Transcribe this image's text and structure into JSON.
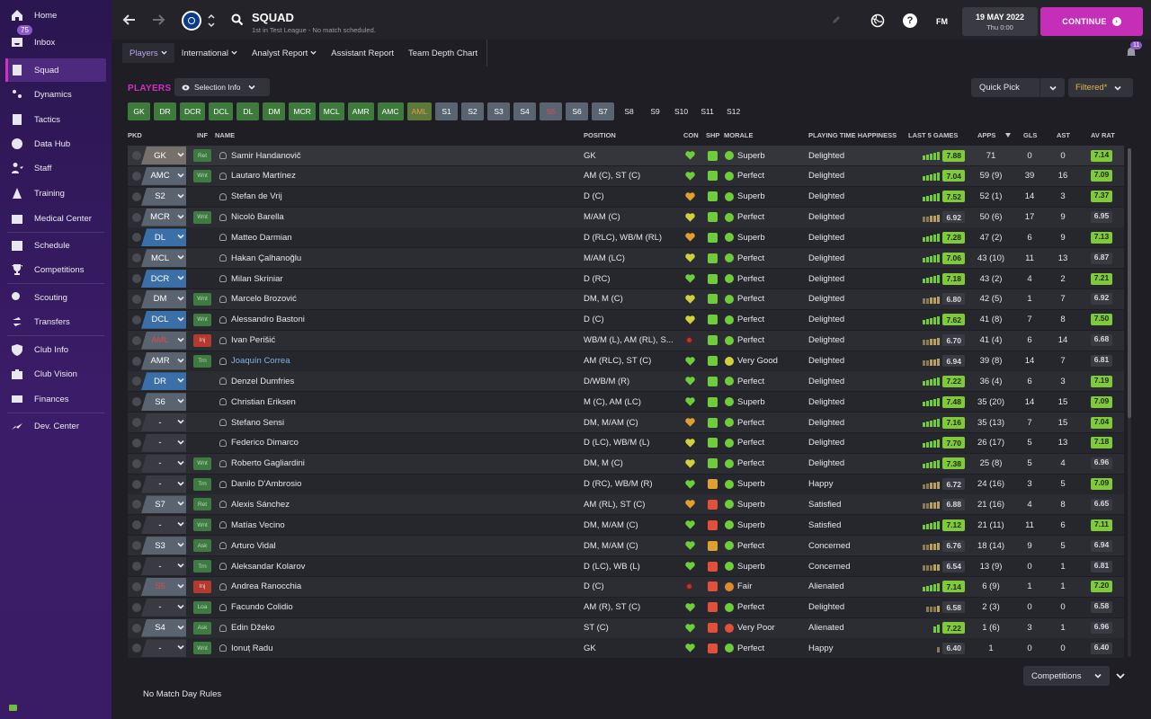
{
  "sidebar": {
    "items": [
      {
        "label": "Home",
        "icon": "home-icon"
      },
      {
        "label": "Inbox",
        "icon": "inbox-icon",
        "badge": "75"
      },
      {
        "label": "Squad",
        "icon": "squad-icon",
        "active": true
      },
      {
        "label": "Dynamics",
        "icon": "dynamics-icon"
      },
      {
        "label": "Tactics",
        "icon": "tactics-icon"
      },
      {
        "label": "Data Hub",
        "icon": "data-hub-icon"
      },
      {
        "label": "Staff",
        "icon": "staff-icon"
      },
      {
        "label": "Training",
        "icon": "training-icon"
      },
      {
        "label": "Medical Center",
        "icon": "medical-icon"
      },
      {
        "label": "Schedule",
        "icon": "schedule-icon"
      },
      {
        "label": "Competitions",
        "icon": "trophy-icon"
      },
      {
        "label": "Scouting",
        "icon": "scouting-icon"
      },
      {
        "label": "Transfers",
        "icon": "transfers-icon"
      },
      {
        "label": "Club Info",
        "icon": "shield-icon"
      },
      {
        "label": "Club Vision",
        "icon": "briefcase-icon"
      },
      {
        "label": "Finances",
        "icon": "finances-icon"
      },
      {
        "label": "Dev. Center",
        "icon": "dev-center-icon"
      }
    ]
  },
  "header": {
    "title": "SQUAD",
    "subtitle": "1st in Test League - No match scheduled.",
    "fm_logo": "FM",
    "date": "19 MAY 2022",
    "time": "Thu 0:00",
    "continue_label": "CONTINUE",
    "notif_count": "11"
  },
  "subnav": [
    "Players",
    "International",
    "Analyst Report",
    "Assistant Report",
    "Team Depth Chart"
  ],
  "toolbar": {
    "players_label": "PLAYERS",
    "selection_info": "Selection Info",
    "quick_pick": "Quick Pick",
    "filtered": "Filtered*"
  },
  "position_chips": [
    {
      "label": "GK",
      "style": "green"
    },
    {
      "label": "DR",
      "style": "green"
    },
    {
      "label": "DCR",
      "style": "green"
    },
    {
      "label": "DCL",
      "style": "green"
    },
    {
      "label": "DL",
      "style": "green"
    },
    {
      "label": "DM",
      "style": "green"
    },
    {
      "label": "MCR",
      "style": "green"
    },
    {
      "label": "MCL",
      "style": "green"
    },
    {
      "label": "AMR",
      "style": "green"
    },
    {
      "label": "AMC",
      "style": "green"
    },
    {
      "label": "AML",
      "style": "amber"
    },
    {
      "label": "S1",
      "style": "grey"
    },
    {
      "label": "S2",
      "style": "grey"
    },
    {
      "label": "S3",
      "style": "grey"
    },
    {
      "label": "S4",
      "style": "grey"
    },
    {
      "label": "S5",
      "style": "red"
    },
    {
      "label": "S6",
      "style": "grey"
    },
    {
      "label": "S7",
      "style": "grey"
    },
    {
      "label": "S8",
      "style": "dark"
    },
    {
      "label": "S9",
      "style": "dark"
    },
    {
      "label": "S10",
      "style": "dark"
    },
    {
      "label": "S11",
      "style": "dark"
    },
    {
      "label": "S12",
      "style": "dark"
    }
  ],
  "columns": {
    "pkd": "PKD",
    "inf": "INF",
    "name": "NAME",
    "position": "POSITION",
    "con": "CON",
    "shp": "SHP",
    "morale": "MORALE",
    "pth": "PLAYING TIME HAPPINESS",
    "last5": "LAST 5 GAMES",
    "apps": "APPS",
    "gls": "GLS",
    "ast": "AST",
    "avrat": "AV RAT"
  },
  "players": [
    {
      "pkd": "GK",
      "pkd_style": "gk",
      "inf": "Ret",
      "name": "Samir Handanovič",
      "position": "GK",
      "con": "green",
      "shp": "green",
      "morale_icon": "green",
      "morale": "Superb",
      "pth": "Delighted",
      "form": [
        0.5,
        0.6,
        0.7,
        0.8,
        0.9
      ],
      "last5": "7.88",
      "last5_good": true,
      "apps": "71",
      "gls": "0",
      "ast": "0",
      "avrat": "7.14",
      "avrat_good": true
    },
    {
      "pkd": "AMC",
      "pkd_style": "grey",
      "inf": "Wnt",
      "name": "Lautaro Martínez",
      "position": "AM (C), ST (C)",
      "con": "green",
      "shp": "green",
      "morale_icon": "green",
      "morale": "Perfect",
      "pth": "Delighted",
      "form": [
        0.5,
        0.6,
        0.7,
        0.8,
        0.9
      ],
      "last5": "7.04",
      "last5_good": true,
      "apps": "59 (9)",
      "gls": "39",
      "ast": "16",
      "avrat": "7.09",
      "avrat_good": true
    },
    {
      "pkd": "S2",
      "pkd_style": "grey",
      "inf": "",
      "name": "Stefan de Vrij",
      "position": "D (C)",
      "con": "amber",
      "shp": "green",
      "morale_icon": "green",
      "morale": "Superb",
      "pth": "Delighted",
      "form": [
        0.5,
        0.6,
        0.7,
        0.8,
        0.9
      ],
      "last5": "7.52",
      "last5_good": true,
      "apps": "52 (1)",
      "gls": "14",
      "ast": "3",
      "avrat": "7.37",
      "avrat_good": true
    },
    {
      "pkd": "MCR",
      "pkd_style": "grey",
      "inf": "Wnt",
      "name": "Nicolò Barella",
      "position": "M/AM (C)",
      "con": "yellow",
      "shp": "green",
      "morale_icon": "green",
      "morale": "Perfect",
      "pth": "Delighted",
      "form": [
        0.6,
        0.6,
        0.7,
        0.7,
        0.8
      ],
      "last5": "6.92",
      "last5_good": false,
      "apps": "50 (6)",
      "gls": "17",
      "ast": "9",
      "avrat": "6.95",
      "avrat_good": false
    },
    {
      "pkd": "DL",
      "pkd_style": "blue",
      "inf": "",
      "name": "Matteo Darmian",
      "position": "D (RLC), WB/M (RL)",
      "con": "amber",
      "shp": "green",
      "morale_icon": "green",
      "morale": "Superb",
      "pth": "Delighted",
      "form": [
        0.5,
        0.6,
        0.7,
        0.8,
        0.9
      ],
      "last5": "7.28",
      "last5_good": true,
      "apps": "47 (2)",
      "gls": "6",
      "ast": "9",
      "avrat": "7.13",
      "avrat_good": true
    },
    {
      "pkd": "MCL",
      "pkd_style": "grey",
      "inf": "",
      "name": "Hakan Çalhanoğlu",
      "position": "M/AM (LC)",
      "con": "yellow",
      "shp": "green",
      "morale_icon": "green",
      "morale": "Perfect",
      "pth": "Delighted",
      "form": [
        0.5,
        0.6,
        0.7,
        0.8,
        0.9
      ],
      "last5": "7.06",
      "last5_good": true,
      "apps": "43 (10)",
      "gls": "11",
      "ast": "13",
      "avrat": "6.87",
      "avrat_good": false
    },
    {
      "pkd": "DCR",
      "pkd_style": "blue",
      "inf": "",
      "name": "Milan Skriniar",
      "position": "D (RC)",
      "con": "green",
      "shp": "green",
      "morale_icon": "green",
      "morale": "Perfect",
      "pth": "Delighted",
      "form": [
        0.5,
        0.6,
        0.7,
        0.8,
        0.9
      ],
      "last5": "7.18",
      "last5_good": true,
      "apps": "43 (2)",
      "gls": "4",
      "ast": "2",
      "avrat": "7.21",
      "avrat_good": true
    },
    {
      "pkd": "DM",
      "pkd_style": "grey",
      "inf": "Wnt",
      "name": "Marcelo Brozović",
      "position": "DM, M (C)",
      "con": "yellow",
      "shp": "green",
      "morale_icon": "green",
      "morale": "Perfect",
      "pth": "Delighted",
      "form": [
        0.6,
        0.6,
        0.7,
        0.7,
        0.8
      ],
      "last5": "6.80",
      "last5_good": false,
      "apps": "42 (5)",
      "gls": "1",
      "ast": "7",
      "avrat": "6.92",
      "avrat_good": false
    },
    {
      "pkd": "DCL",
      "pkd_style": "blue",
      "inf": "Wnt",
      "name": "Alessandro Bastoni",
      "position": "D (C)",
      "con": "yellow",
      "shp": "green",
      "morale_icon": "green",
      "morale": "Perfect",
      "pth": "Delighted",
      "form": [
        0.5,
        0.6,
        0.7,
        0.8,
        0.9
      ],
      "last5": "7.62",
      "last5_good": true,
      "apps": "41 (8)",
      "gls": "7",
      "ast": "8",
      "avrat": "7.50",
      "avrat_good": true
    },
    {
      "pkd": "AML",
      "pkd_style": "red",
      "inf": "Inj",
      "name": "Ivan Perišić",
      "position": "WB/M (L), AM (RL), S...",
      "con": "injured",
      "shp": "green",
      "morale_icon": "green",
      "morale": "Perfect",
      "pth": "Delighted",
      "form": [
        0.6,
        0.6,
        0.7,
        0.7,
        0.8
      ],
      "last5": "6.70",
      "last5_good": false,
      "apps": "41 (4)",
      "gls": "6",
      "ast": "14",
      "avrat": "6.68",
      "avrat_good": false
    },
    {
      "pkd": "AMR",
      "pkd_style": "grey",
      "inf": "Trn",
      "name": "Joaquín Correa",
      "name_link": true,
      "position": "AM (RLC), ST (C)",
      "con": "green",
      "shp": "green",
      "morale_icon": "yellow",
      "morale": "Very Good",
      "pth": "Delighted",
      "form": [
        0.6,
        0.6,
        0.7,
        0.7,
        0.8
      ],
      "last5": "6.94",
      "last5_good": false,
      "apps": "39 (8)",
      "gls": "14",
      "ast": "7",
      "avrat": "6.81",
      "avrat_good": false
    },
    {
      "pkd": "DR",
      "pkd_style": "blue",
      "inf": "",
      "name": "Denzel Dumfries",
      "position": "D/WB/M (R)",
      "con": "green",
      "shp": "green",
      "morale_icon": "green",
      "morale": "Perfect",
      "pth": "Delighted",
      "form": [
        0.5,
        0.6,
        0.7,
        0.8,
        0.9
      ],
      "last5": "7.22",
      "last5_good": true,
      "apps": "36 (4)",
      "gls": "6",
      "ast": "3",
      "avrat": "7.19",
      "avrat_good": true
    },
    {
      "pkd": "S6",
      "pkd_style": "grey",
      "inf": "",
      "name": "Christian Eriksen",
      "position": "M (C), AM (LC)",
      "con": "green",
      "shp": "green",
      "morale_icon": "green",
      "morale": "Superb",
      "pth": "Delighted",
      "form": [
        0.5,
        0.6,
        0.7,
        0.8,
        0.9
      ],
      "last5": "7.48",
      "last5_good": true,
      "apps": "35 (20)",
      "gls": "14",
      "ast": "15",
      "avrat": "7.09",
      "avrat_good": true
    },
    {
      "pkd": "-",
      "pkd_style": "none",
      "inf": "",
      "name": "Stefano Sensi",
      "position": "DM, M/AM (C)",
      "con": "amber",
      "shp": "green",
      "morale_icon": "green",
      "morale": "Perfect",
      "pth": "Delighted",
      "form": [
        0.5,
        0.6,
        0.7,
        0.8,
        0.9
      ],
      "last5": "7.16",
      "last5_good": true,
      "apps": "35 (13)",
      "gls": "7",
      "ast": "15",
      "avrat": "7.04",
      "avrat_good": true
    },
    {
      "pkd": "-",
      "pkd_style": "none",
      "inf": "",
      "name": "Federico Dimarco",
      "position": "D (LC), WB/M (L)",
      "con": "yellow",
      "shp": "green",
      "morale_icon": "green",
      "morale": "Perfect",
      "pth": "Delighted",
      "form": [
        0.5,
        0.6,
        0.7,
        0.8,
        0.9
      ],
      "last5": "7.70",
      "last5_good": true,
      "apps": "26 (17)",
      "gls": "5",
      "ast": "13",
      "avrat": "7.18",
      "avrat_good": true
    },
    {
      "pkd": "-",
      "pkd_style": "none",
      "inf": "Wnt",
      "name": "Roberto Gagliardini",
      "position": "DM, M (C)",
      "con": "yellow",
      "shp": "green",
      "morale_icon": "green",
      "morale": "Perfect",
      "pth": "Delighted",
      "form": [
        0.5,
        0.6,
        0.7,
        0.8,
        0.9
      ],
      "last5": "7.38",
      "last5_good": true,
      "apps": "25 (8)",
      "gls": "5",
      "ast": "4",
      "avrat": "6.96",
      "avrat_good": false
    },
    {
      "pkd": "-",
      "pkd_style": "none",
      "inf": "Trn",
      "name": "Danilo D'Ambrosio",
      "position": "D (RC), WB/M (R)",
      "con": "green",
      "shp": "amber",
      "morale_icon": "green",
      "morale": "Superb",
      "pth": "Happy",
      "form": [
        0.5,
        0.6,
        0.7,
        0.7,
        0.8
      ],
      "last5": "6.72",
      "last5_good": false,
      "apps": "24 (16)",
      "gls": "3",
      "ast": "5",
      "avrat": "7.09",
      "avrat_good": true
    },
    {
      "pkd": "S7",
      "pkd_style": "grey",
      "inf": "Ret",
      "name": "Alexis Sánchez",
      "position": "AM (RL), ST (C)",
      "con": "amber",
      "shp": "red",
      "morale_icon": "green",
      "morale": "Superb",
      "pth": "Satisfied",
      "form": [
        0.6,
        0.6,
        0.7,
        0.7,
        0.8
      ],
      "last5": "6.88",
      "last5_good": false,
      "apps": "21 (16)",
      "gls": "4",
      "ast": "8",
      "avrat": "6.65",
      "avrat_good": false
    },
    {
      "pkd": "-",
      "pkd_style": "none",
      "inf": "Wnt",
      "name": "Matías Vecino",
      "position": "DM, M/AM (C)",
      "con": "green",
      "shp": "red",
      "morale_icon": "green",
      "morale": "Superb",
      "pth": "Satisfied",
      "form": [
        0.5,
        0.6,
        0.7,
        0.8,
        0.9
      ],
      "last5": "7.12",
      "last5_good": true,
      "apps": "21 (11)",
      "gls": "11",
      "ast": "6",
      "avrat": "7.11",
      "avrat_good": true
    },
    {
      "pkd": "S3",
      "pkd_style": "grey",
      "inf": "Ask",
      "name": "Arturo Vidal",
      "position": "DM, M/AM (C)",
      "con": "green",
      "shp": "amber",
      "morale_icon": "green",
      "morale": "Perfect",
      "pth": "Concerned",
      "form": [
        0.6,
        0.6,
        0.7,
        0.7,
        0.8
      ],
      "last5": "6.76",
      "last5_good": false,
      "apps": "18 (14)",
      "gls": "9",
      "ast": "5",
      "avrat": "6.94",
      "avrat_good": false
    },
    {
      "pkd": "-",
      "pkd_style": "none",
      "inf": "Trn",
      "name": "Aleksandar Kolarov",
      "position": "D (LC), WB (L)",
      "con": "green",
      "shp": "red",
      "morale_icon": "green",
      "morale": "Superb",
      "pth": "Concerned",
      "form": [
        0.6,
        0.6,
        0.6,
        0.7,
        0.7
      ],
      "last5": "6.54",
      "last5_good": false,
      "apps": "13 (9)",
      "gls": "0",
      "ast": "1",
      "avrat": "6.81",
      "avrat_good": false
    },
    {
      "pkd": "S5",
      "pkd_style": "red",
      "inf": "Inj",
      "name": "Andrea Ranocchia",
      "position": "D (C)",
      "con": "injured",
      "shp": "red",
      "morale_icon": "orange",
      "morale": "Fair",
      "pth": "Alienated",
      "form": [
        0.5,
        0.6,
        0.7,
        0.8,
        0.9
      ],
      "last5": "7.14",
      "last5_good": true,
      "apps": "6 (9)",
      "gls": "1",
      "ast": "1",
      "avrat": "7.20",
      "avrat_good": true
    },
    {
      "pkd": "-",
      "pkd_style": "none",
      "inf": "Loa",
      "name": "Facundo Colidio",
      "position": "AM (R), ST (C)",
      "con": "green",
      "shp": "red",
      "morale_icon": "green",
      "morale": "Perfect",
      "pth": "Delighted",
      "form": [
        0.6,
        0.6,
        0.6,
        0.7
      ],
      "last5": "6.58",
      "last5_good": false,
      "apps": "2 (3)",
      "gls": "0",
      "ast": "0",
      "avrat": "6.58",
      "avrat_good": false
    },
    {
      "pkd": "S4",
      "pkd_style": "grey",
      "inf": "Ask",
      "name": "Edin Džeko",
      "position": "ST (C)",
      "con": "green",
      "shp": "red",
      "morale_icon": "red",
      "morale": "Very Poor",
      "pth": "Alienated",
      "form": [
        0.7,
        0.9
      ],
      "last5": "7.22",
      "last5_good": true,
      "apps": "1 (6)",
      "gls": "3",
      "ast": "1",
      "avrat": "6.96",
      "avrat_good": false
    },
    {
      "pkd": "-",
      "pkd_style": "none",
      "inf": "Wnt",
      "name": "Ionuț Radu",
      "position": "GK",
      "con": "green",
      "shp": "red",
      "morale_icon": "green",
      "morale": "Perfect",
      "pth": "Happy",
      "form": [
        0.6
      ],
      "last5": "6.40",
      "last5_good": false,
      "apps": "1",
      "gls": "0",
      "ast": "0",
      "avrat": "6.40",
      "avrat_good": false
    }
  ],
  "footer": {
    "competitions": "Competitions",
    "no_rules": "No Match Day Rules"
  },
  "colors": {
    "accent": "#c52fb8",
    "good": "#7fc93a",
    "injured": "#e04848"
  }
}
